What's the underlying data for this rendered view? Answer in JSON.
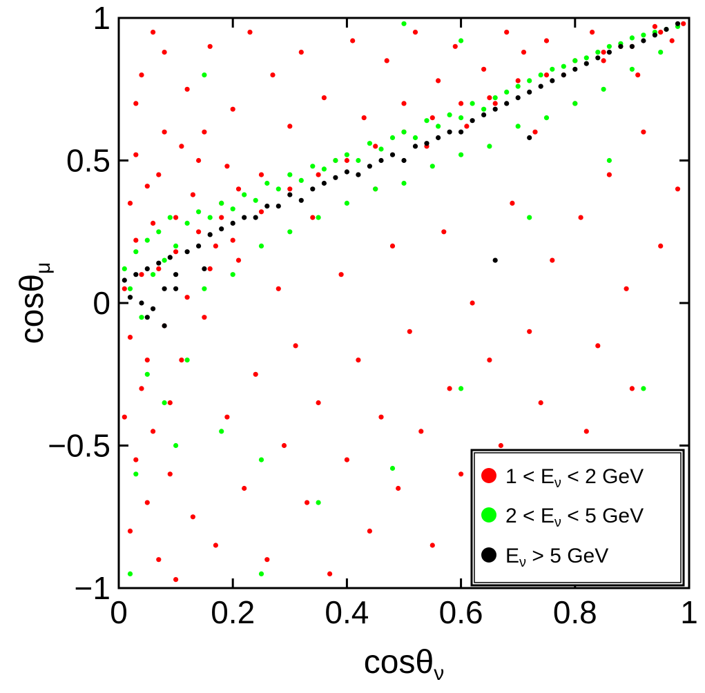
{
  "chart_data": {
    "type": "scatter",
    "title": "",
    "xlabel": {
      "main": "cosθ",
      "sub": "ν"
    },
    "ylabel": {
      "main": "cosθ",
      "sub": "μ"
    },
    "xlim": [
      0,
      1
    ],
    "ylim": [
      -1,
      1
    ],
    "x_ticks": [
      0,
      0.2,
      0.4,
      0.6,
      0.8,
      1
    ],
    "y_ticks": [
      -1,
      -0.5,
      0,
      0.5,
      1
    ],
    "x_tick_labels": [
      "0",
      "0.2",
      "0.4",
      "0.6",
      "0.8",
      "1"
    ],
    "y_tick_labels": [
      "−1",
      "−0.5",
      "0",
      "0.5",
      "1"
    ],
    "grid": false,
    "legend_position": "bottom-right",
    "series": [
      {
        "legend": {
          "pre": "1 < E",
          "sub": "ν",
          "post": " < 2 GeV"
        },
        "color": "#ff0000",
        "points": [
          [
            0.01,
            0.05
          ],
          [
            0.02,
            -0.12
          ],
          [
            0.03,
            0.22
          ],
          [
            0.04,
            -0.3
          ],
          [
            0.05,
            0.41
          ],
          [
            0.06,
            -0.45
          ],
          [
            0.07,
            0.12
          ],
          [
            0.08,
            0.6
          ],
          [
            0.09,
            -0.6
          ],
          [
            0.1,
            0.3
          ],
          [
            0.11,
            -0.2
          ],
          [
            0.12,
            0.75
          ],
          [
            0.13,
            -0.75
          ],
          [
            0.14,
            0.5
          ],
          [
            0.15,
            -0.05
          ],
          [
            0.16,
            0.9
          ],
          [
            0.17,
            -0.85
          ],
          [
            0.18,
            0.35
          ],
          [
            0.19,
            -0.4
          ],
          [
            0.2,
            0.68
          ],
          [
            0.21,
            0.15
          ],
          [
            0.22,
            -0.65
          ],
          [
            0.23,
            0.95
          ],
          [
            0.24,
            -0.25
          ],
          [
            0.25,
            0.45
          ],
          [
            0.26,
            -0.9
          ],
          [
            0.27,
            0.8
          ],
          [
            0.28,
            0.05
          ],
          [
            0.29,
            -0.5
          ],
          [
            0.3,
            0.62
          ],
          [
            0.31,
            -0.15
          ],
          [
            0.32,
            0.88
          ],
          [
            0.33,
            -0.7
          ],
          [
            0.34,
            0.3
          ],
          [
            0.35,
            -0.35
          ],
          [
            0.36,
            0.72
          ],
          [
            0.37,
            -0.95
          ],
          [
            0.38,
            0.5
          ],
          [
            0.39,
            0.1
          ],
          [
            0.4,
            -0.55
          ],
          [
            0.41,
            0.92
          ],
          [
            0.42,
            -0.2
          ],
          [
            0.43,
            0.65
          ],
          [
            0.44,
            -0.8
          ],
          [
            0.45,
            0.4
          ],
          [
            0.46,
            -0.4
          ],
          [
            0.47,
            0.85
          ],
          [
            0.48,
            0.2
          ],
          [
            0.49,
            -0.65
          ],
          [
            0.5,
            0.7
          ],
          [
            0.51,
            -0.1
          ],
          [
            0.52,
            0.95
          ],
          [
            0.53,
            -0.45
          ],
          [
            0.54,
            0.55
          ],
          [
            0.55,
            -0.85
          ],
          [
            0.56,
            0.78
          ],
          [
            0.57,
            0.25
          ],
          [
            0.58,
            -0.3
          ],
          [
            0.59,
            0.9
          ],
          [
            0.6,
            -0.6
          ],
          [
            0.61,
            0.62
          ],
          [
            0.62,
            0.0
          ],
          [
            0.63,
            -0.9
          ],
          [
            0.64,
            0.82
          ],
          [
            0.65,
            -0.2
          ],
          [
            0.66,
            0.7
          ],
          [
            0.67,
            -0.5
          ],
          [
            0.68,
            0.95
          ],
          [
            0.69,
            0.35
          ],
          [
            0.7,
            -0.75
          ],
          [
            0.71,
            0.88
          ],
          [
            0.72,
            -0.1
          ],
          [
            0.73,
            0.6
          ],
          [
            0.74,
            -0.35
          ],
          [
            0.75,
            0.92
          ],
          [
            0.76,
            0.15
          ],
          [
            0.77,
            -0.6
          ],
          [
            0.78,
            0.8
          ],
          [
            0.79,
            -0.9
          ],
          [
            0.8,
            0.7
          ],
          [
            0.81,
            0.3
          ],
          [
            0.82,
            -0.45
          ],
          [
            0.83,
            0.95
          ],
          [
            0.84,
            -0.15
          ],
          [
            0.85,
            0.85
          ],
          [
            0.86,
            0.45
          ],
          [
            0.87,
            -0.7
          ],
          [
            0.88,
            0.9
          ],
          [
            0.89,
            0.05
          ],
          [
            0.9,
            -0.3
          ],
          [
            0.91,
            0.8
          ],
          [
            0.92,
            0.6
          ],
          [
            0.93,
            -0.55
          ],
          [
            0.94,
            0.97
          ],
          [
            0.95,
            0.2
          ],
          [
            0.96,
            -0.8
          ],
          [
            0.97,
            0.92
          ],
          [
            0.98,
            0.4
          ],
          [
            0.99,
            0.98
          ],
          [
            0.02,
            0.35
          ],
          [
            0.04,
            0.1
          ],
          [
            0.06,
            0.28
          ],
          [
            0.08,
            -0.08
          ],
          [
            0.1,
            0.18
          ],
          [
            0.12,
            0.02
          ],
          [
            0.14,
            0.25
          ],
          [
            0.16,
            0.12
          ],
          [
            0.18,
            0.3
          ],
          [
            0.2,
            0.22
          ],
          [
            0.03,
            0.52
          ],
          [
            0.05,
            -0.2
          ],
          [
            0.07,
            0.45
          ],
          [
            0.09,
            -0.35
          ],
          [
            0.11,
            0.55
          ],
          [
            0.13,
            0.38
          ],
          [
            0.15,
            0.6
          ],
          [
            0.17,
            0.2
          ],
          [
            0.19,
            0.48
          ],
          [
            0.21,
            0.4
          ],
          [
            0.25,
            0.32
          ],
          [
            0.3,
            0.4
          ],
          [
            0.35,
            0.45
          ],
          [
            0.4,
            0.5
          ],
          [
            0.45,
            0.55
          ],
          [
            0.5,
            0.6
          ],
          [
            0.55,
            0.65
          ],
          [
            0.6,
            0.7
          ],
          [
            0.65,
            0.72
          ],
          [
            0.7,
            0.78
          ],
          [
            0.75,
            0.8
          ],
          [
            0.8,
            0.85
          ],
          [
            0.85,
            0.88
          ],
          [
            0.9,
            0.9
          ],
          [
            0.95,
            0.95
          ],
          [
            0.01,
            -0.4
          ],
          [
            0.03,
            -0.55
          ],
          [
            0.05,
            -0.7
          ],
          [
            0.07,
            -0.9
          ],
          [
            0.02,
            -0.8
          ],
          [
            0.04,
            0.8
          ],
          [
            0.06,
            0.95
          ],
          [
            0.03,
            0.7
          ],
          [
            0.08,
            0.88
          ],
          [
            0.1,
            -0.97
          ]
        ]
      },
      {
        "legend": {
          "pre": "2 < E",
          "sub": "ν",
          "post": " < 5 GeV"
        },
        "color": "#00ff00",
        "points": [
          [
            0.01,
            0.12
          ],
          [
            0.02,
            0.05
          ],
          [
            0.03,
            0.18
          ],
          [
            0.04,
            -0.05
          ],
          [
            0.05,
            0.22
          ],
          [
            0.06,
            0.1
          ],
          [
            0.07,
            0.25
          ],
          [
            0.08,
            0.15
          ],
          [
            0.09,
            0.3
          ],
          [
            0.1,
            0.2
          ],
          [
            0.12,
            0.28
          ],
          [
            0.14,
            0.32
          ],
          [
            0.16,
            0.3
          ],
          [
            0.18,
            0.35
          ],
          [
            0.2,
            0.33
          ],
          [
            0.22,
            0.38
          ],
          [
            0.24,
            0.36
          ],
          [
            0.26,
            0.42
          ],
          [
            0.28,
            0.4
          ],
          [
            0.3,
            0.45
          ],
          [
            0.32,
            0.43
          ],
          [
            0.34,
            0.48
          ],
          [
            0.36,
            0.47
          ],
          [
            0.38,
            0.5
          ],
          [
            0.4,
            0.52
          ],
          [
            0.42,
            0.5
          ],
          [
            0.44,
            0.56
          ],
          [
            0.46,
            0.54
          ],
          [
            0.48,
            0.58
          ],
          [
            0.5,
            0.6
          ],
          [
            0.52,
            0.58
          ],
          [
            0.54,
            0.64
          ],
          [
            0.56,
            0.62
          ],
          [
            0.58,
            0.66
          ],
          [
            0.6,
            0.65
          ],
          [
            0.62,
            0.7
          ],
          [
            0.64,
            0.68
          ],
          [
            0.66,
            0.72
          ],
          [
            0.68,
            0.74
          ],
          [
            0.7,
            0.76
          ],
          [
            0.72,
            0.78
          ],
          [
            0.74,
            0.8
          ],
          [
            0.76,
            0.82
          ],
          [
            0.78,
            0.83
          ],
          [
            0.8,
            0.85
          ],
          [
            0.82,
            0.86
          ],
          [
            0.84,
            0.88
          ],
          [
            0.86,
            0.9
          ],
          [
            0.88,
            0.91
          ],
          [
            0.9,
            0.93
          ],
          [
            0.92,
            0.94
          ],
          [
            0.94,
            0.95
          ],
          [
            0.96,
            0.96
          ],
          [
            0.98,
            0.97
          ],
          [
            0.05,
            -0.25
          ],
          [
            0.08,
            -0.35
          ],
          [
            0.12,
            -0.2
          ],
          [
            0.15,
            0.05
          ],
          [
            0.2,
            0.1
          ],
          [
            0.25,
            0.2
          ],
          [
            0.3,
            0.25
          ],
          [
            0.35,
            0.3
          ],
          [
            0.4,
            0.35
          ],
          [
            0.45,
            0.4
          ],
          [
            0.5,
            0.42
          ],
          [
            0.55,
            0.48
          ],
          [
            0.6,
            0.52
          ],
          [
            0.65,
            0.55
          ],
          [
            0.7,
            0.62
          ],
          [
            0.75,
            0.65
          ],
          [
            0.8,
            0.7
          ],
          [
            0.85,
            0.75
          ],
          [
            0.9,
            0.82
          ],
          [
            0.95,
            0.88
          ],
          [
            0.03,
            -0.6
          ],
          [
            0.1,
            -0.5
          ],
          [
            0.18,
            -0.45
          ],
          [
            0.25,
            -0.55
          ],
          [
            0.35,
            -0.7
          ],
          [
            0.48,
            -0.58
          ],
          [
            0.6,
            -0.3
          ],
          [
            0.72,
            0.3
          ],
          [
            0.86,
            0.5
          ],
          [
            0.92,
            -0.3
          ],
          [
            0.02,
            -0.95
          ],
          [
            0.25,
            -0.95
          ],
          [
            0.5,
            0.98
          ],
          [
            0.6,
            0.92
          ],
          [
            0.15,
            0.8
          ]
        ]
      },
      {
        "legend": {
          "pre": "E",
          "sub": "ν",
          "post": " > 5 GeV"
        },
        "color": "#000000",
        "points": [
          [
            0.01,
            0.08
          ],
          [
            0.02,
            0.02
          ],
          [
            0.03,
            0.1
          ],
          [
            0.04,
            0.0
          ],
          [
            0.05,
            0.12
          ],
          [
            0.06,
            -0.02
          ],
          [
            0.07,
            0.14
          ],
          [
            0.08,
            0.05
          ],
          [
            0.09,
            0.16
          ],
          [
            0.1,
            0.1
          ],
          [
            0.12,
            0.18
          ],
          [
            0.14,
            0.2
          ],
          [
            0.16,
            0.24
          ],
          [
            0.18,
            0.26
          ],
          [
            0.2,
            0.28
          ],
          [
            0.22,
            0.3
          ],
          [
            0.24,
            0.3
          ],
          [
            0.26,
            0.34
          ],
          [
            0.28,
            0.34
          ],
          [
            0.3,
            0.38
          ],
          [
            0.32,
            0.36
          ],
          [
            0.34,
            0.4
          ],
          [
            0.36,
            0.42
          ],
          [
            0.38,
            0.44
          ],
          [
            0.4,
            0.46
          ],
          [
            0.42,
            0.45
          ],
          [
            0.44,
            0.48
          ],
          [
            0.46,
            0.5
          ],
          [
            0.48,
            0.52
          ],
          [
            0.5,
            0.5
          ],
          [
            0.52,
            0.55
          ],
          [
            0.54,
            0.56
          ],
          [
            0.56,
            0.58
          ],
          [
            0.58,
            0.6
          ],
          [
            0.6,
            0.6
          ],
          [
            0.62,
            0.64
          ],
          [
            0.64,
            0.66
          ],
          [
            0.66,
            0.68
          ],
          [
            0.68,
            0.7
          ],
          [
            0.7,
            0.72
          ],
          [
            0.72,
            0.74
          ],
          [
            0.74,
            0.76
          ],
          [
            0.76,
            0.78
          ],
          [
            0.78,
            0.8
          ],
          [
            0.8,
            0.82
          ],
          [
            0.82,
            0.84
          ],
          [
            0.84,
            0.86
          ],
          [
            0.86,
            0.88
          ],
          [
            0.88,
            0.9
          ],
          [
            0.9,
            0.9
          ],
          [
            0.92,
            0.92
          ],
          [
            0.94,
            0.94
          ],
          [
            0.96,
            0.96
          ],
          [
            0.98,
            0.98
          ],
          [
            0.05,
            -0.05
          ],
          [
            0.08,
            -0.08
          ],
          [
            0.1,
            0.05
          ],
          [
            0.15,
            0.12
          ],
          [
            0.66,
            0.15
          ],
          [
            0.72,
            0.58
          ]
        ]
      }
    ]
  }
}
